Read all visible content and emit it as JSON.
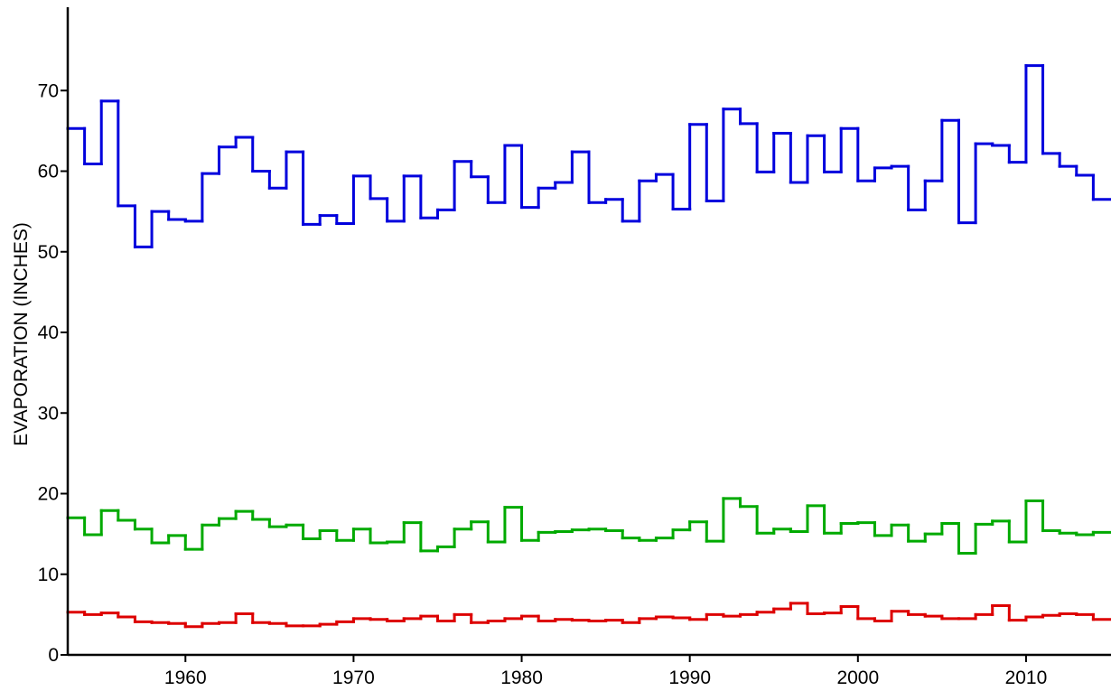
{
  "chart_data": {
    "type": "line",
    "drawstyle": "steps-post",
    "ylabel": "EVAPORATION (INCHES)",
    "xlim": [
      1953,
      2015
    ],
    "xticks": [
      1960,
      1970,
      1980,
      1990,
      2000,
      2010
    ],
    "ylim": [
      0,
      80
    ],
    "yticks": [
      0,
      10,
      20,
      30,
      40,
      50,
      60,
      70
    ],
    "x": [
      1953,
      1954,
      1955,
      1956,
      1957,
      1958,
      1959,
      1960,
      1961,
      1962,
      1963,
      1964,
      1965,
      1966,
      1967,
      1968,
      1969,
      1970,
      1971,
      1972,
      1973,
      1974,
      1975,
      1976,
      1977,
      1978,
      1979,
      1980,
      1981,
      1982,
      1983,
      1984,
      1985,
      1986,
      1987,
      1988,
      1989,
      1990,
      1991,
      1992,
      1993,
      1994,
      1995,
      1996,
      1997,
      1998,
      1999,
      2000,
      2001,
      2002,
      2003,
      2004,
      2005,
      2006,
      2007,
      2008,
      2009,
      2010,
      2011,
      2012,
      2013,
      2014
    ],
    "series": [
      {
        "color": "#0000dd",
        "values": [
          65.3,
          60.9,
          68.7,
          55.7,
          50.6,
          55.0,
          54.0,
          53.8,
          59.7,
          63.0,
          64.2,
          60.0,
          57.9,
          62.4,
          53.4,
          54.5,
          53.5,
          59.4,
          56.6,
          53.8,
          59.4,
          54.2,
          55.2,
          61.2,
          59.3,
          56.1,
          63.2,
          55.5,
          57.9,
          58.6,
          62.4,
          56.1,
          56.5,
          53.8,
          58.8,
          59.6,
          55.3,
          65.8,
          56.3,
          67.7,
          65.9,
          59.9,
          64.7,
          58.6,
          64.4,
          59.9,
          65.3,
          58.8,
          60.4,
          60.6,
          55.2,
          58.8,
          66.3,
          53.6,
          63.4,
          63.2,
          61.1,
          73.1,
          62.2,
          60.6,
          59.5,
          56.5
        ]
      },
      {
        "color": "#00aa00",
        "values": [
          17.0,
          14.9,
          17.9,
          16.7,
          15.6,
          13.9,
          14.8,
          13.1,
          16.1,
          16.9,
          17.8,
          16.8,
          15.9,
          16.1,
          14.4,
          15.4,
          14.2,
          15.6,
          13.9,
          14.0,
          16.4,
          12.9,
          13.4,
          15.6,
          16.5,
          14.0,
          18.3,
          14.2,
          15.2,
          15.3,
          15.5,
          15.6,
          15.4,
          14.5,
          14.2,
          14.5,
          15.5,
          16.5,
          14.1,
          19.4,
          18.4,
          15.1,
          15.6,
          15.3,
          18.5,
          15.1,
          16.3,
          16.4,
          14.8,
          16.1,
          14.1,
          15.0,
          16.3,
          12.6,
          16.2,
          16.6,
          14.0,
          19.1,
          15.4,
          15.1,
          14.9,
          15.2
        ]
      },
      {
        "color": "#dd0000",
        "values": [
          5.3,
          5.0,
          5.2,
          4.7,
          4.1,
          4.0,
          3.9,
          3.5,
          3.9,
          4.0,
          5.1,
          4.0,
          3.9,
          3.6,
          3.6,
          3.8,
          4.1,
          4.5,
          4.4,
          4.2,
          4.5,
          4.8,
          4.2,
          5.0,
          4.0,
          4.2,
          4.5,
          4.8,
          4.2,
          4.4,
          4.3,
          4.2,
          4.3,
          4.0,
          4.5,
          4.7,
          4.6,
          4.4,
          5.0,
          4.8,
          5.0,
          5.3,
          5.7,
          6.4,
          5.1,
          5.2,
          6.0,
          4.5,
          4.2,
          5.4,
          5.0,
          4.8,
          4.5,
          4.5,
          5.0,
          6.1,
          4.3,
          4.7,
          4.9,
          5.1,
          5.0,
          4.4
        ]
      }
    ]
  }
}
